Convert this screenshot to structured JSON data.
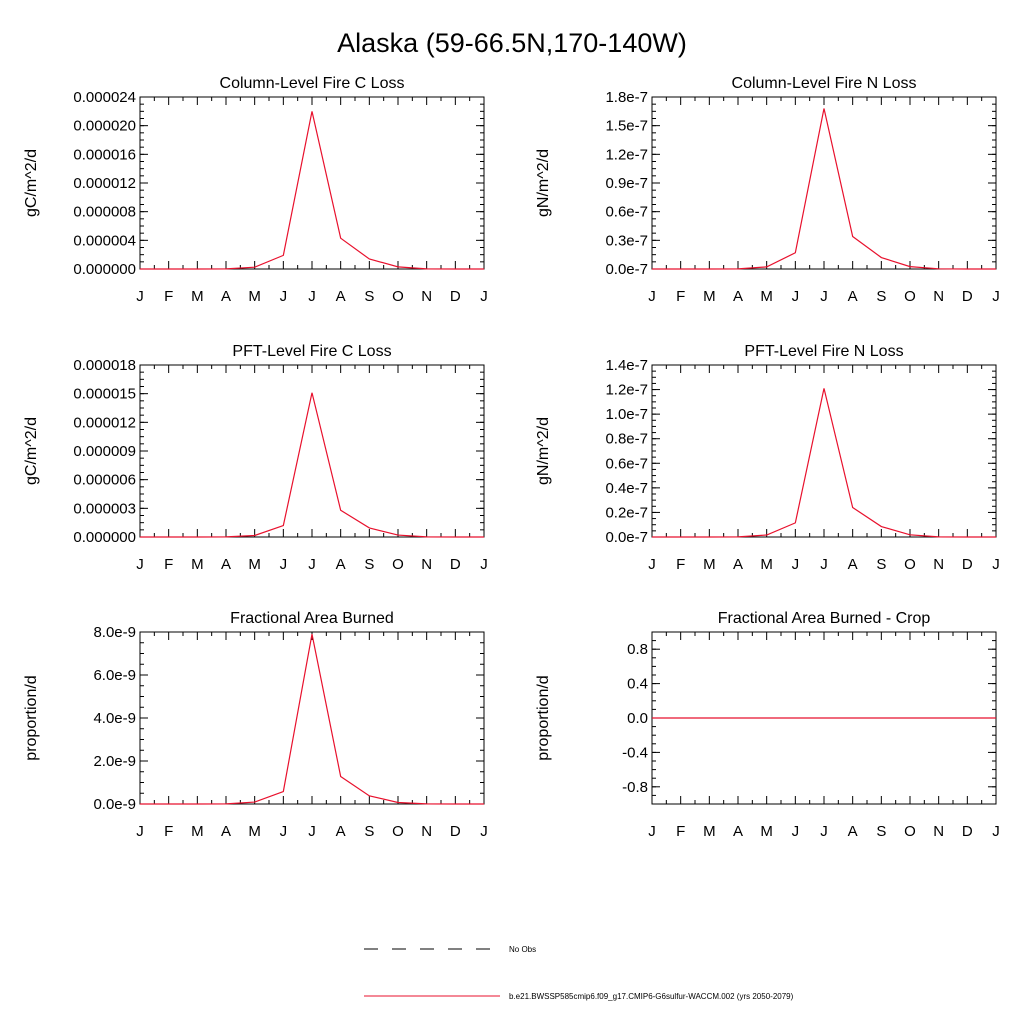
{
  "page": {
    "title": "Alaska (59-66.5N,170-140W)"
  },
  "colors": {
    "model_line": "#e8112d",
    "axes": "#000000",
    "obs_line": "#000000"
  },
  "legend": {
    "obs_label": "No Obs",
    "model_label": "b.e21.BWSSP585cmip6.f09_g17.CMIP6-G6sulfur-WACCM.002 (yrs 2050-2079)"
  },
  "chart_data": [
    {
      "type": "line",
      "title": "Column-Level Fire C Loss",
      "ylabel": "gC/m^2/d",
      "categories": [
        "J",
        "F",
        "M",
        "A",
        "M",
        "J",
        "J",
        "A",
        "S",
        "O",
        "N",
        "D",
        "J"
      ],
      "ylim": [
        0,
        2.4e-05
      ],
      "yticks": [
        0,
        4e-06,
        8e-06,
        1.2e-05,
        1.6e-05,
        2e-05,
        2.4e-05
      ],
      "ytick_labels": [
        "0.000000",
        "0.000004",
        "0.000008",
        "0.000012",
        "0.000016",
        "0.000020",
        "0.000024"
      ],
      "series": [
        {
          "values": [
            0,
            0,
            0,
            2e-08,
            2.5e-07,
            1.9e-06,
            2.2e-05,
            4.3e-06,
            1.4e-06,
            3e-07,
            2e-08,
            0,
            0
          ]
        }
      ]
    },
    {
      "type": "line",
      "title": "Column-Level Fire N Loss",
      "ylabel": "gN/m^2/d",
      "categories": [
        "J",
        "F",
        "M",
        "A",
        "M",
        "J",
        "J",
        "A",
        "S",
        "O",
        "N",
        "D",
        "J"
      ],
      "ylim": [
        0,
        1.8e-07
      ],
      "yticks": [
        0,
        3e-08,
        6e-08,
        9e-08,
        1.2e-07,
        1.5e-07,
        1.8e-07
      ],
      "ytick_labels": [
        "0.0e-7",
        "0.3e-7",
        "0.6e-7",
        "0.9e-7",
        "1.2e-7",
        "1.5e-7",
        "1.8e-7"
      ],
      "series": [
        {
          "values": [
            0,
            0,
            0,
            1.5e-10,
            2.2e-09,
            1.7e-08,
            1.68e-07,
            3.4e-08,
            1.2e-08,
            2.5e-09,
            2e-10,
            0,
            0
          ]
        }
      ]
    },
    {
      "type": "line",
      "title": "PFT-Level Fire C Loss",
      "ylabel": "gC/m^2/d",
      "categories": [
        "J",
        "F",
        "M",
        "A",
        "M",
        "J",
        "J",
        "A",
        "S",
        "O",
        "N",
        "D",
        "J"
      ],
      "ylim": [
        0,
        1.8e-05
      ],
      "yticks": [
        0,
        3e-06,
        6e-06,
        9e-06,
        1.2e-05,
        1.5e-05,
        1.8e-05
      ],
      "ytick_labels": [
        "0.000000",
        "0.000003",
        "0.000006",
        "0.000009",
        "0.000012",
        "0.000015",
        "0.000018"
      ],
      "series": [
        {
          "values": [
            0,
            0,
            0,
            1e-08,
            1.6e-07,
            1.2e-06,
            1.51e-05,
            2.8e-06,
            9.5e-07,
            2e-07,
            1e-08,
            0,
            0
          ]
        }
      ]
    },
    {
      "type": "line",
      "title": "PFT-Level Fire N Loss",
      "ylabel": "gN/m^2/d",
      "categories": [
        "J",
        "F",
        "M",
        "A",
        "M",
        "J",
        "J",
        "A",
        "S",
        "O",
        "N",
        "D",
        "J"
      ],
      "ylim": [
        0,
        1.4e-07
      ],
      "yticks": [
        0,
        2e-08,
        4e-08,
        6e-08,
        8e-08,
        1e-07,
        1.2e-07,
        1.4e-07
      ],
      "ytick_labels": [
        "0.0e-7",
        "0.2e-7",
        "0.4e-7",
        "0.6e-7",
        "0.8e-7",
        "1.0e-7",
        "1.2e-7",
        "1.4e-7"
      ],
      "series": [
        {
          "values": [
            0,
            0,
            0,
            1e-10,
            1.6e-09,
            1.15e-08,
            1.21e-07,
            2.4e-08,
            8.5e-09,
            1.8e-09,
            1e-10,
            0,
            0
          ]
        }
      ]
    },
    {
      "type": "line",
      "title": "Fractional Area Burned",
      "ylabel": "proportion/d",
      "categories": [
        "J",
        "F",
        "M",
        "A",
        "M",
        "J",
        "J",
        "A",
        "S",
        "O",
        "N",
        "D",
        "J"
      ],
      "ylim": [
        0,
        8e-09
      ],
      "yticks": [
        0,
        2e-09,
        4e-09,
        6e-09,
        8e-09
      ],
      "ytick_labels": [
        "0.0e-9",
        "2.0e-9",
        "4.0e-9",
        "6.0e-9",
        "8.0e-9"
      ],
      "series": [
        {
          "values": [
            0,
            0,
            0,
            5e-12,
            9e-11,
            5.8e-10,
            7.9e-09,
            1.28e-09,
            3.8e-10,
            7e-11,
            5e-12,
            0,
            0
          ]
        }
      ]
    },
    {
      "type": "line",
      "title": "Fractional Area Burned - Crop",
      "ylabel": "proportion/d",
      "categories": [
        "J",
        "F",
        "M",
        "A",
        "M",
        "J",
        "J",
        "A",
        "S",
        "O",
        "N",
        "D",
        "J"
      ],
      "ylim": [
        -1,
        1
      ],
      "yticks": [
        -0.8,
        -0.4,
        0,
        0.4,
        0.8
      ],
      "ytick_labels": [
        "-0.8",
        "-0.4",
        "0.0",
        "0.4",
        "0.8"
      ],
      "series": [
        {
          "values": [
            0,
            0,
            0,
            0,
            0,
            0,
            0,
            0,
            0,
            0,
            0,
            0,
            0
          ]
        }
      ]
    }
  ]
}
